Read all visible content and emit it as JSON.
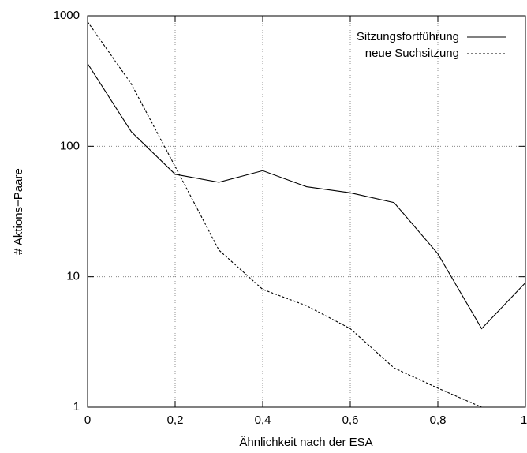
{
  "chart_data": {
    "type": "line",
    "xlabel": "Ähnlichkeit nach der ESA",
    "ylabel": "# Aktions−Paare",
    "x": [
      0,
      0.1,
      0.2,
      0.3,
      0.4,
      0.5,
      0.6,
      0.7,
      0.8,
      0.9,
      1
    ],
    "series": [
      {
        "name": "Sitzungsfortführung",
        "color": "#000000",
        "dash": "solid",
        "values": [
          430,
          129,
          61,
          53,
          65,
          49,
          44,
          37,
          15,
          4,
          9
        ]
      },
      {
        "name": "neue Suchsitzung",
        "color": "#000000",
        "dash": "dashed",
        "values": [
          900,
          300,
          70,
          16,
          8,
          6,
          4,
          2,
          1.4,
          1,
          null
        ]
      }
    ],
    "xlim": [
      0,
      1
    ],
    "ylim": [
      1,
      1000
    ],
    "log_y": true,
    "grid": true,
    "legend": "top-right",
    "xticks": [
      0,
      {
        "value": 0.2,
        "label": "0,2"
      },
      {
        "value": 0.4,
        "label": "0,4"
      },
      {
        "value": 0.6,
        "label": "0,6"
      },
      {
        "value": 0.8,
        "label": "0,8"
      },
      1
    ],
    "yticks": [
      1,
      10,
      100,
      1000
    ]
  }
}
